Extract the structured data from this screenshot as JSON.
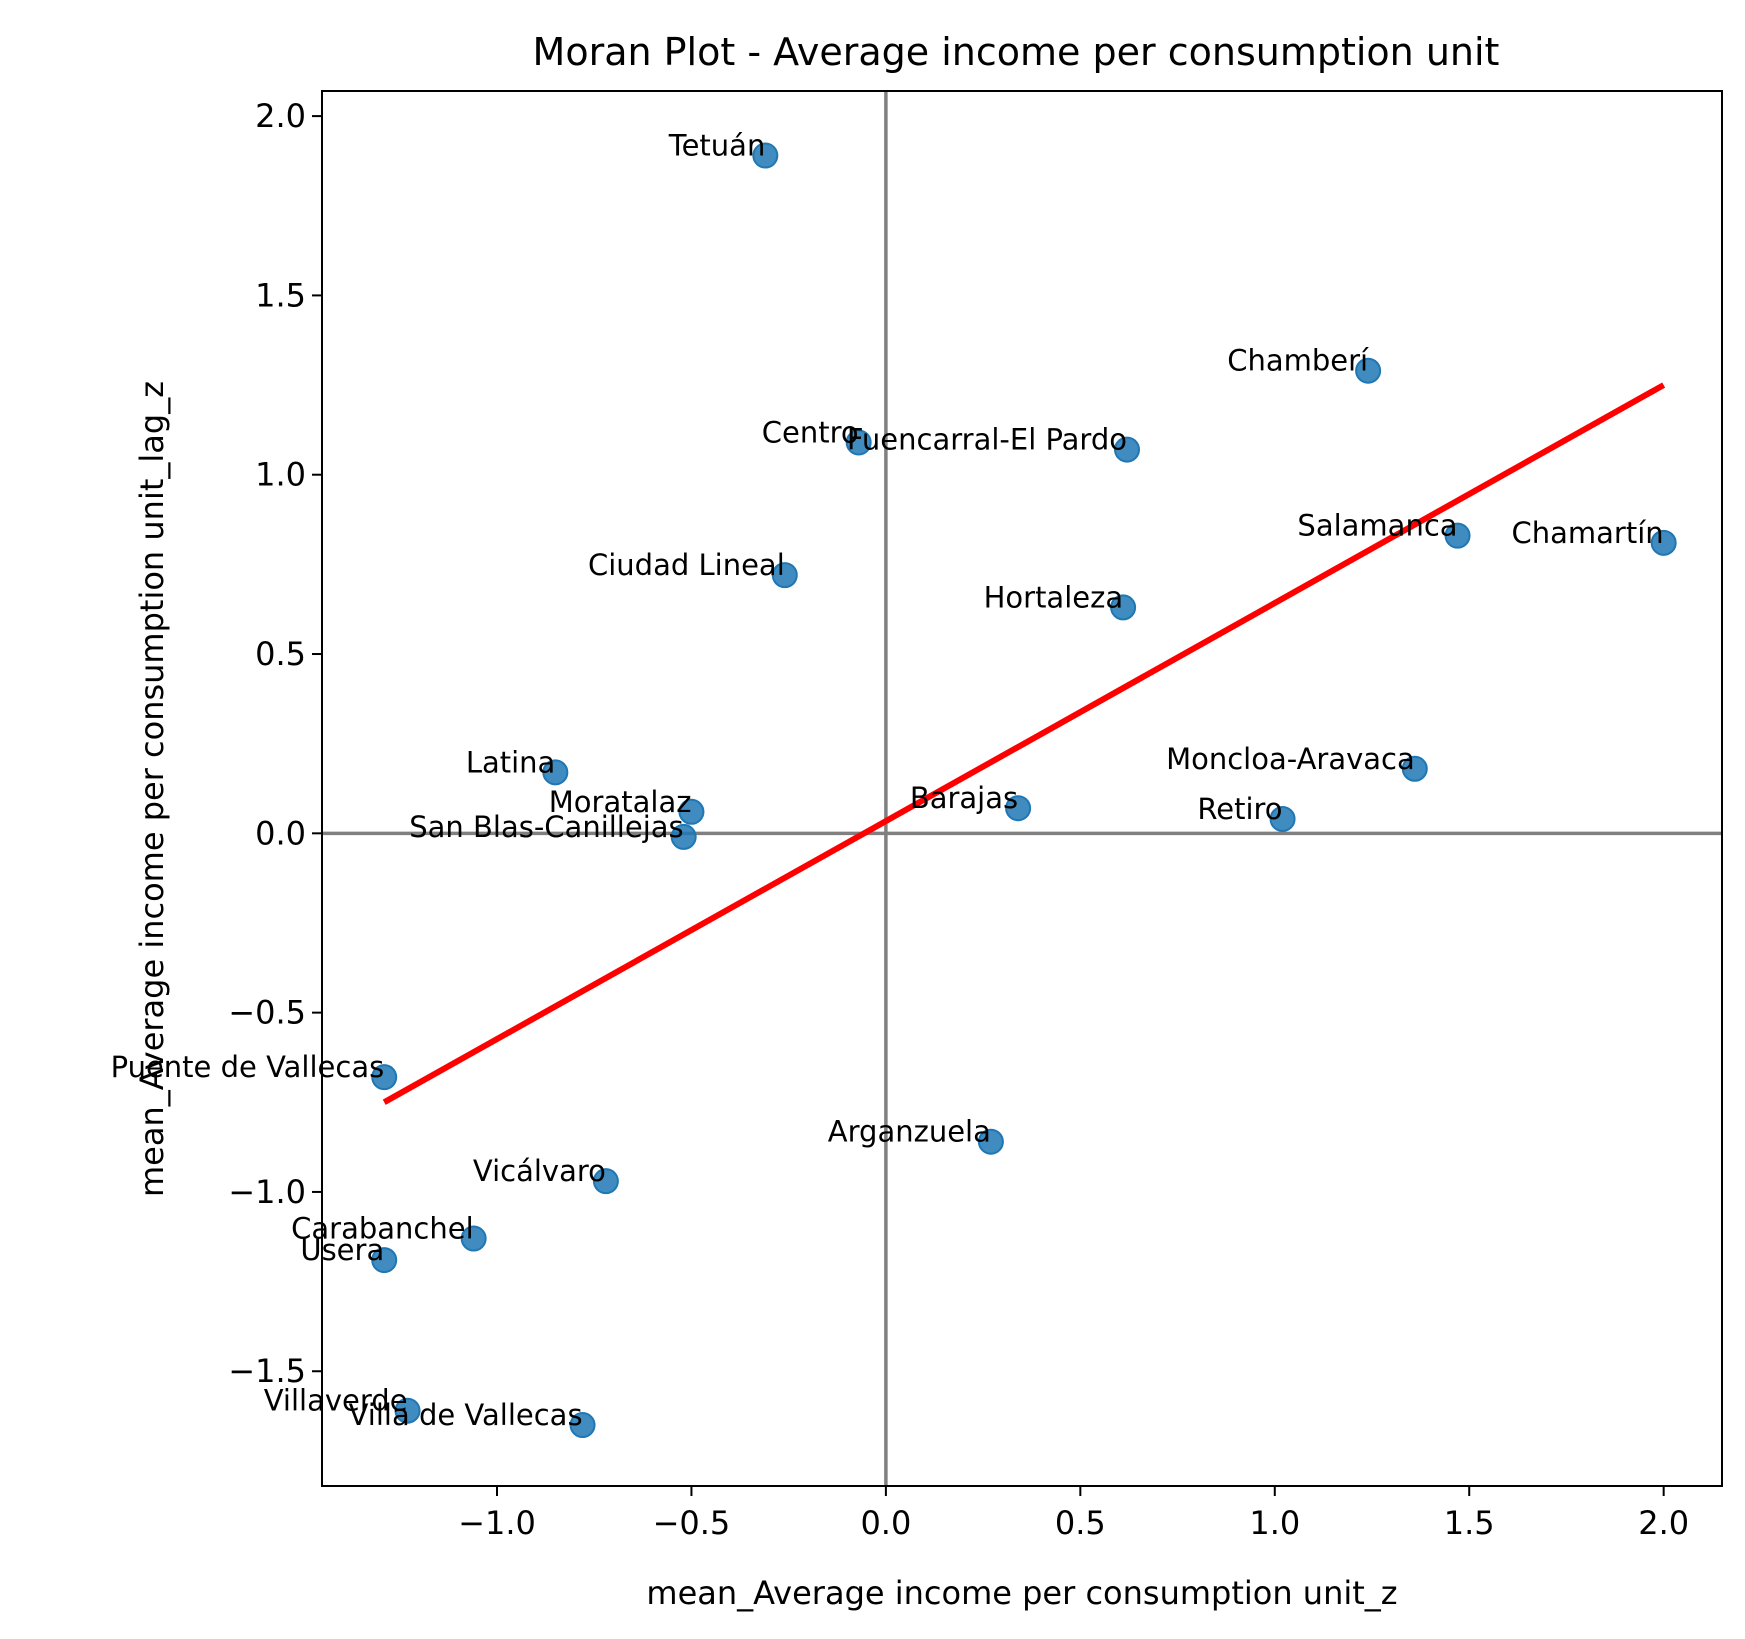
{
  "chart_data": {
    "type": "scatter",
    "title": "Moran Plot - Average income per consumption unit",
    "xlabel": "mean_Average income per consumption unit_z",
    "ylabel": "mean_Average income per consumption unit_lag_z",
    "xlim": [
      -1.45,
      2.15
    ],
    "ylim": [
      -1.82,
      2.07
    ],
    "x_ticks": [
      -1.0,
      -0.5,
      0.0,
      0.5,
      1.0,
      1.5,
      2.0
    ],
    "x_tick_labels": [
      "−1.0",
      "−0.5",
      "0.0",
      "0.5",
      "1.0",
      "1.5",
      "2.0"
    ],
    "y_ticks": [
      -1.5,
      -1.0,
      -0.5,
      0.0,
      0.5,
      1.0,
      1.5,
      2.0
    ],
    "y_tick_labels": [
      "−1.5",
      "−1.0",
      "−0.5",
      "0.0",
      "0.5",
      "1.0",
      "1.5",
      "2.0"
    ],
    "grid": false,
    "reference_lines": {
      "x": 0,
      "y": 0,
      "color": "#808080"
    },
    "point_color": "#1f77b4",
    "points": [
      {
        "label": "Tetuán",
        "x": -0.31,
        "y": 1.89
      },
      {
        "label": "Chamberí",
        "x": 1.24,
        "y": 1.29
      },
      {
        "label": "Centro",
        "x": -0.07,
        "y": 1.09
      },
      {
        "label": "Fuencarral-El Pardo",
        "x": 0.62,
        "y": 1.07
      },
      {
        "label": "Salamanca",
        "x": 1.47,
        "y": 0.83
      },
      {
        "label": "Chamartín",
        "x": 2.0,
        "y": 0.81
      },
      {
        "label": "Ciudad Lineal",
        "x": -0.26,
        "y": 0.72
      },
      {
        "label": "Hortaleza",
        "x": 0.61,
        "y": 0.63
      },
      {
        "label": "Moncloa-Aravaca",
        "x": 1.36,
        "y": 0.18
      },
      {
        "label": "Latina",
        "x": -0.85,
        "y": 0.17
      },
      {
        "label": "Barajas",
        "x": 0.34,
        "y": 0.07
      },
      {
        "label": "Moratalaz",
        "x": -0.5,
        "y": 0.06
      },
      {
        "label": "Retiro",
        "x": 1.02,
        "y": 0.04
      },
      {
        "label": "San Blas-Canillejas",
        "x": -0.52,
        "y": -0.01
      },
      {
        "label": "Puente de Vallecas",
        "x": -1.29,
        "y": -0.68
      },
      {
        "label": "Arganzuela",
        "x": 0.27,
        "y": -0.86
      },
      {
        "label": "Vicálvaro",
        "x": -0.72,
        "y": -0.97
      },
      {
        "label": "Carabanchel",
        "x": -1.06,
        "y": -1.13
      },
      {
        "label": "Usera",
        "x": -1.29,
        "y": -1.19
      },
      {
        "label": "Villaverde",
        "x": -1.23,
        "y": -1.61
      },
      {
        "label": "Villa de Vallecas",
        "x": -0.78,
        "y": -1.65
      }
    ],
    "fit_line": {
      "color": "#ff0000",
      "x": [
        -1.29,
        2.0
      ],
      "y": [
        -0.75,
        1.25
      ]
    }
  }
}
